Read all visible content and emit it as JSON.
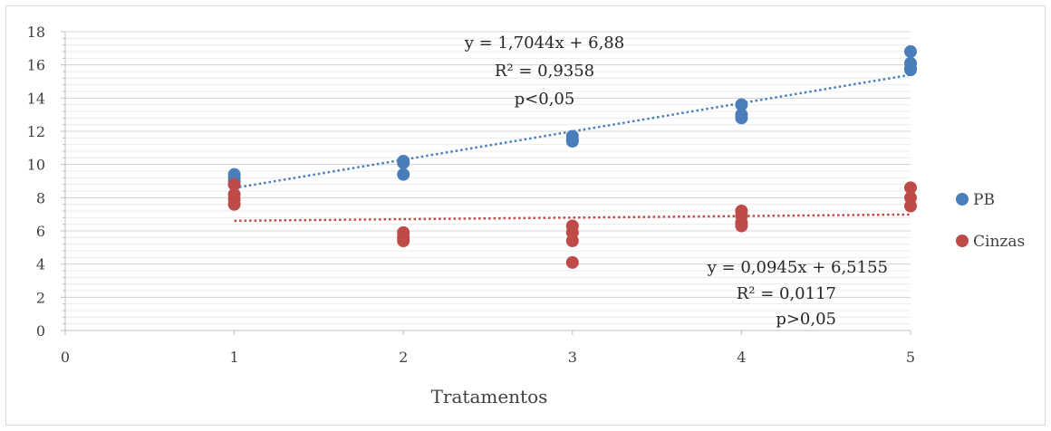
{
  "chart_data": {
    "type": "scatter",
    "title": "",
    "xlabel": "Tratamentos",
    "ylabel": "",
    "xlim": [
      0,
      5
    ],
    "ylim": [
      0,
      18
    ],
    "xticks": [
      "0",
      "1",
      "2",
      "3",
      "4",
      "5"
    ],
    "yticks": [
      "0",
      "2",
      "4",
      "6",
      "8",
      "10",
      "12",
      "14",
      "16",
      "18"
    ],
    "grid": "horizontal-major-minor",
    "legend_position": "right",
    "series": [
      {
        "name": "PB",
        "color": "#4a7ebb",
        "points": [
          [
            1,
            9.4
          ],
          [
            1,
            9.2
          ],
          [
            1,
            9.0
          ],
          [
            1,
            8.8
          ],
          [
            2,
            10.2
          ],
          [
            2,
            10.1
          ],
          [
            2,
            9.4
          ],
          [
            3,
            11.7
          ],
          [
            3,
            11.5
          ],
          [
            3,
            11.4
          ],
          [
            4,
            13.6
          ],
          [
            4,
            13.0
          ],
          [
            4,
            12.8
          ],
          [
            5,
            16.8
          ],
          [
            5,
            16.1
          ],
          [
            5,
            15.8
          ],
          [
            5,
            15.7
          ]
        ],
        "trendline": {
          "slope": 1.7044,
          "intercept": 6.88,
          "x_from": 1,
          "x_to": 5,
          "style": "dotted"
        },
        "annotation": [
          "y = 1,7044x + 6,88",
          "R² = 0,9358",
          "p<0,05"
        ]
      },
      {
        "name": "Cinzas",
        "color": "#be4b48",
        "points": [
          [
            1,
            8.8
          ],
          [
            1,
            8.2
          ],
          [
            1,
            7.9
          ],
          [
            1,
            7.6
          ],
          [
            2,
            5.9
          ],
          [
            2,
            5.6
          ],
          [
            2,
            5.4
          ],
          [
            3,
            6.3
          ],
          [
            3,
            5.9
          ],
          [
            3,
            5.4
          ],
          [
            3,
            4.1
          ],
          [
            4,
            7.2
          ],
          [
            4,
            6.9
          ],
          [
            4,
            6.5
          ],
          [
            4,
            6.3
          ],
          [
            5,
            8.6
          ],
          [
            5,
            8.0
          ],
          [
            5,
            7.5
          ]
        ],
        "trendline": {
          "slope": 0.0945,
          "intercept": 6.5155,
          "x_from": 1,
          "x_to": 5,
          "style": "dotted"
        },
        "annotation": [
          "y = 0,0945x + 6,5155",
          "R² = 0,0117",
          "p>0,05"
        ]
      }
    ]
  }
}
